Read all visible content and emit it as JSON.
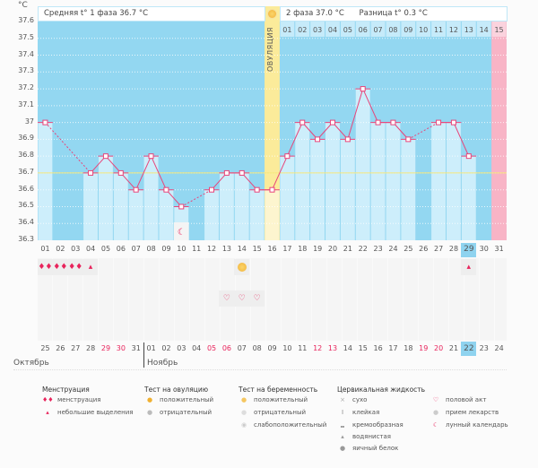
{
  "header": {
    "unit": "°C",
    "phase1_label": "Средняя t° 1 фаза 36.7 °C",
    "phase2_label": "2 фаза 37.0 °C",
    "diff_label": "Разница t° 0.3 °C",
    "ovulation_label": "ОВУЛЯЦИЯ"
  },
  "chart_data": {
    "type": "line",
    "ylabel": "°C",
    "ylim": [
      36.3,
      37.6
    ],
    "yticks": [
      "37.6",
      "37.5",
      "37.4",
      "37.3",
      "37.2",
      "37.1",
      "37",
      "36.9",
      "36.8",
      "36.7",
      "36.6",
      "36.5",
      "36.4",
      "36.3"
    ],
    "cycle_days": [
      "01",
      "02",
      "03",
      "04",
      "05",
      "06",
      "07",
      "08",
      "09",
      "10",
      "11",
      "12",
      "13",
      "14",
      "15",
      "16",
      "17",
      "18",
      "19",
      "20",
      "21",
      "22",
      "23",
      "24",
      "25",
      "26",
      "27",
      "28",
      "29",
      "30",
      "31"
    ],
    "values": [
      37.0,
      null,
      null,
      36.7,
      36.8,
      36.7,
      36.6,
      36.8,
      36.6,
      36.5,
      null,
      36.6,
      36.7,
      36.7,
      36.6,
      36.6,
      36.8,
      37.0,
      36.9,
      37.0,
      36.9,
      37.2,
      37.0,
      37.0,
      36.9,
      null,
      37.0,
      37.0,
      36.8,
      null,
      null
    ],
    "coverline": 36.7,
    "ovulation_day": 16,
    "current_day": 29,
    "phase2_days": [
      "01",
      "02",
      "03",
      "04",
      "05",
      "06",
      "07",
      "08",
      "09",
      "10",
      "11",
      "12",
      "13",
      "14",
      "15"
    ],
    "calendar_dates": [
      "25",
      "26",
      "27",
      "28",
      "29",
      "30",
      "31",
      "01",
      "02",
      "03",
      "04",
      "05",
      "06",
      "07",
      "08",
      "09",
      "10",
      "11",
      "12",
      "13",
      "14",
      "15",
      "16",
      "17",
      "18",
      "19",
      "20",
      "21",
      "22",
      "23",
      "24"
    ],
    "weekend_indices": [
      4,
      5,
      11,
      12,
      18,
      19,
      25,
      26
    ],
    "months": [
      "Октябрь",
      "Ноябрь"
    ],
    "colors": {
      "bg": "#93d7f1",
      "bar": "#cdeefb",
      "line": "#e8457a",
      "coverline": "#f6e77a",
      "ovulation": "#fbeb9a",
      "pink": "#f8b4c6"
    }
  },
  "events": {
    "menstruation": [
      1,
      2,
      3
    ],
    "spotting": [
      4,
      29
    ],
    "ovulation_test_positive": [
      14
    ],
    "intercourse": [
      13,
      14,
      15
    ],
    "lunar": [
      10
    ]
  },
  "legend": {
    "menstruation": {
      "title": "Менструация",
      "items": [
        "менструация",
        "небольшие выделения"
      ]
    },
    "ovulation_test": {
      "title": "Тест на овуляцию",
      "items": [
        "положительный",
        "отрицательный"
      ]
    },
    "pregnancy_test": {
      "title": "Тест на беременность",
      "items": [
        "положительный",
        "отрицательный",
        "слабоположительный"
      ]
    },
    "cervical": {
      "title": "Цервикальная жидкость",
      "items": [
        "сухо",
        "клейкая",
        "кремообразная",
        "водянистая",
        "яичный белок"
      ]
    },
    "other": {
      "items": [
        "половой акт",
        "прием лекарств",
        "лунный календарь"
      ]
    }
  }
}
